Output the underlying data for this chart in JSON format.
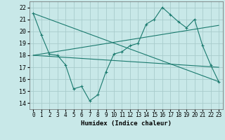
{
  "xlabel": "Humidex (Indice chaleur)",
  "bg_color": "#c8e8e8",
  "grid_color": "#a8cccc",
  "line_color": "#1a7a6e",
  "xlim": [
    -0.5,
    23.5
  ],
  "ylim": [
    13.5,
    22.5
  ],
  "yticks": [
    14,
    15,
    16,
    17,
    18,
    19,
    20,
    21,
    22
  ],
  "xticks": [
    0,
    1,
    2,
    3,
    4,
    5,
    6,
    7,
    8,
    9,
    10,
    11,
    12,
    13,
    14,
    15,
    16,
    17,
    18,
    19,
    20,
    21,
    22,
    23
  ],
  "main_x": [
    0,
    1,
    2,
    3,
    4,
    5,
    6,
    7,
    8,
    9,
    10,
    11,
    12,
    13,
    14,
    15,
    16,
    17,
    18,
    19,
    20,
    21,
    22,
    23
  ],
  "main_y": [
    21.5,
    19.7,
    18.1,
    18.0,
    17.2,
    15.2,
    15.4,
    14.2,
    14.7,
    16.6,
    18.1,
    18.3,
    18.8,
    19.0,
    20.6,
    21.0,
    22.0,
    21.4,
    20.8,
    20.3,
    21.0,
    18.8,
    17.2,
    15.8
  ],
  "trend1_x": [
    0,
    23
  ],
  "trend1_y": [
    21.5,
    15.8
  ],
  "trend2_x": [
    0,
    23
  ],
  "trend2_y": [
    18.0,
    20.5
  ],
  "trend3_x": [
    0,
    23
  ],
  "trend3_y": [
    18.0,
    17.0
  ]
}
